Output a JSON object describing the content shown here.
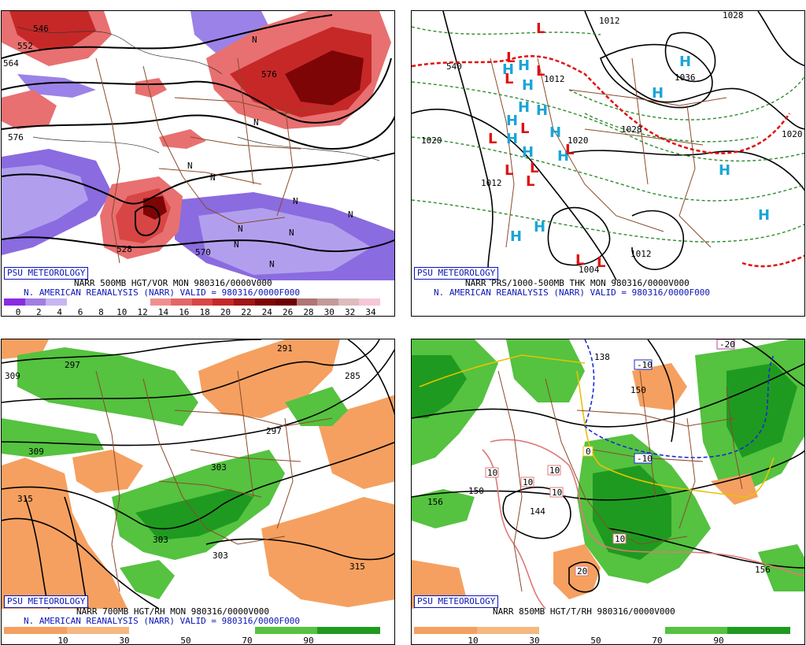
{
  "branding": "PSU METEOROLOGY",
  "panels": {
    "tl": {
      "line1": "NARR 500MB HGT/VOR MON 980316/0000V000",
      "line2": "N. AMERICAN REANALYSIS (NARR) VALID = 980316/0000F000",
      "legend_ticks": [
        "0",
        "2",
        "4",
        "6",
        "8",
        "10",
        "12",
        "14",
        "16",
        "18",
        "20",
        "22",
        "24",
        "26",
        "28",
        "30",
        "32",
        "34"
      ],
      "colors": [
        "#8a2be2",
        "#a47de0",
        "#c7b5f0",
        "#ffffff",
        "#ffffff",
        "#ffffff",
        "#ffffff",
        "#f08f8f",
        "#e06868",
        "#d84545",
        "#c62828",
        "#a01515",
        "#7d0505",
        "#6d0000",
        "#b07575",
        "#c49a9a",
        "#dcbcbc",
        "#f7c7d6"
      ],
      "contour_labels": [
        "546",
        "552",
        "564",
        "576",
        "528",
        "570",
        "576"
      ],
      "vort_symbols": [
        "N",
        "N",
        "N",
        "N",
        "N",
        "N",
        "N",
        "N",
        "N",
        "N"
      ]
    },
    "tr": {
      "line1": "NARR PRS/1000-500MB THK MON 980316/0000V000",
      "line2": "N. AMERICAN REANALYSIS (NARR) VALID = 980316/0000F000",
      "isobar_labels": [
        "1012",
        "1028",
        "540",
        "1020",
        "1036",
        "1028",
        "1020",
        "1012",
        "1012",
        "1004",
        "1020",
        "1012"
      ],
      "highs": [
        "H",
        "H",
        "H",
        "H",
        "H",
        "H",
        "H",
        "H",
        "H",
        "H",
        "H",
        "H",
        "H",
        "H",
        "H",
        "H"
      ],
      "lows": [
        "L",
        "L",
        "L",
        "L",
        "L",
        "L",
        "L",
        "L",
        "L",
        "L",
        "L",
        "L"
      ]
    },
    "bl": {
      "line1": "NARR 700MB HGT/RH MON 980316/0000V000",
      "line2": "N. AMERICAN REANALYSIS (NARR) VALID = 980316/0000F000",
      "legend_ticks": [
        "10",
        "30",
        "50",
        "70",
        "90"
      ],
      "colors": [
        "#f5a060",
        "#f5b880",
        "#ffffff",
        "#ffffff",
        "#55c240",
        "#1f9a20"
      ],
      "contour_labels": [
        "297",
        "291",
        "285",
        "297",
        "303",
        "309",
        "315",
        "303",
        "303",
        "315",
        "309"
      ]
    },
    "br": {
      "line1": "NARR 850MB HGT/T/RH 980316/0000V000",
      "legend_ticks": [
        "10",
        "30",
        "50",
        "70",
        "90"
      ],
      "colors": [
        "#f5a060",
        "#f5b880",
        "#ffffff",
        "#ffffff",
        "#55c240",
        "#1f9a20"
      ],
      "contour_labels": [
        "150",
        "156",
        "144",
        "150",
        "156",
        "138"
      ],
      "temp_boxes": [
        "-10",
        "-10",
        "-20",
        "0",
        "10",
        "10",
        "10",
        "10",
        "10",
        "20"
      ]
    }
  }
}
